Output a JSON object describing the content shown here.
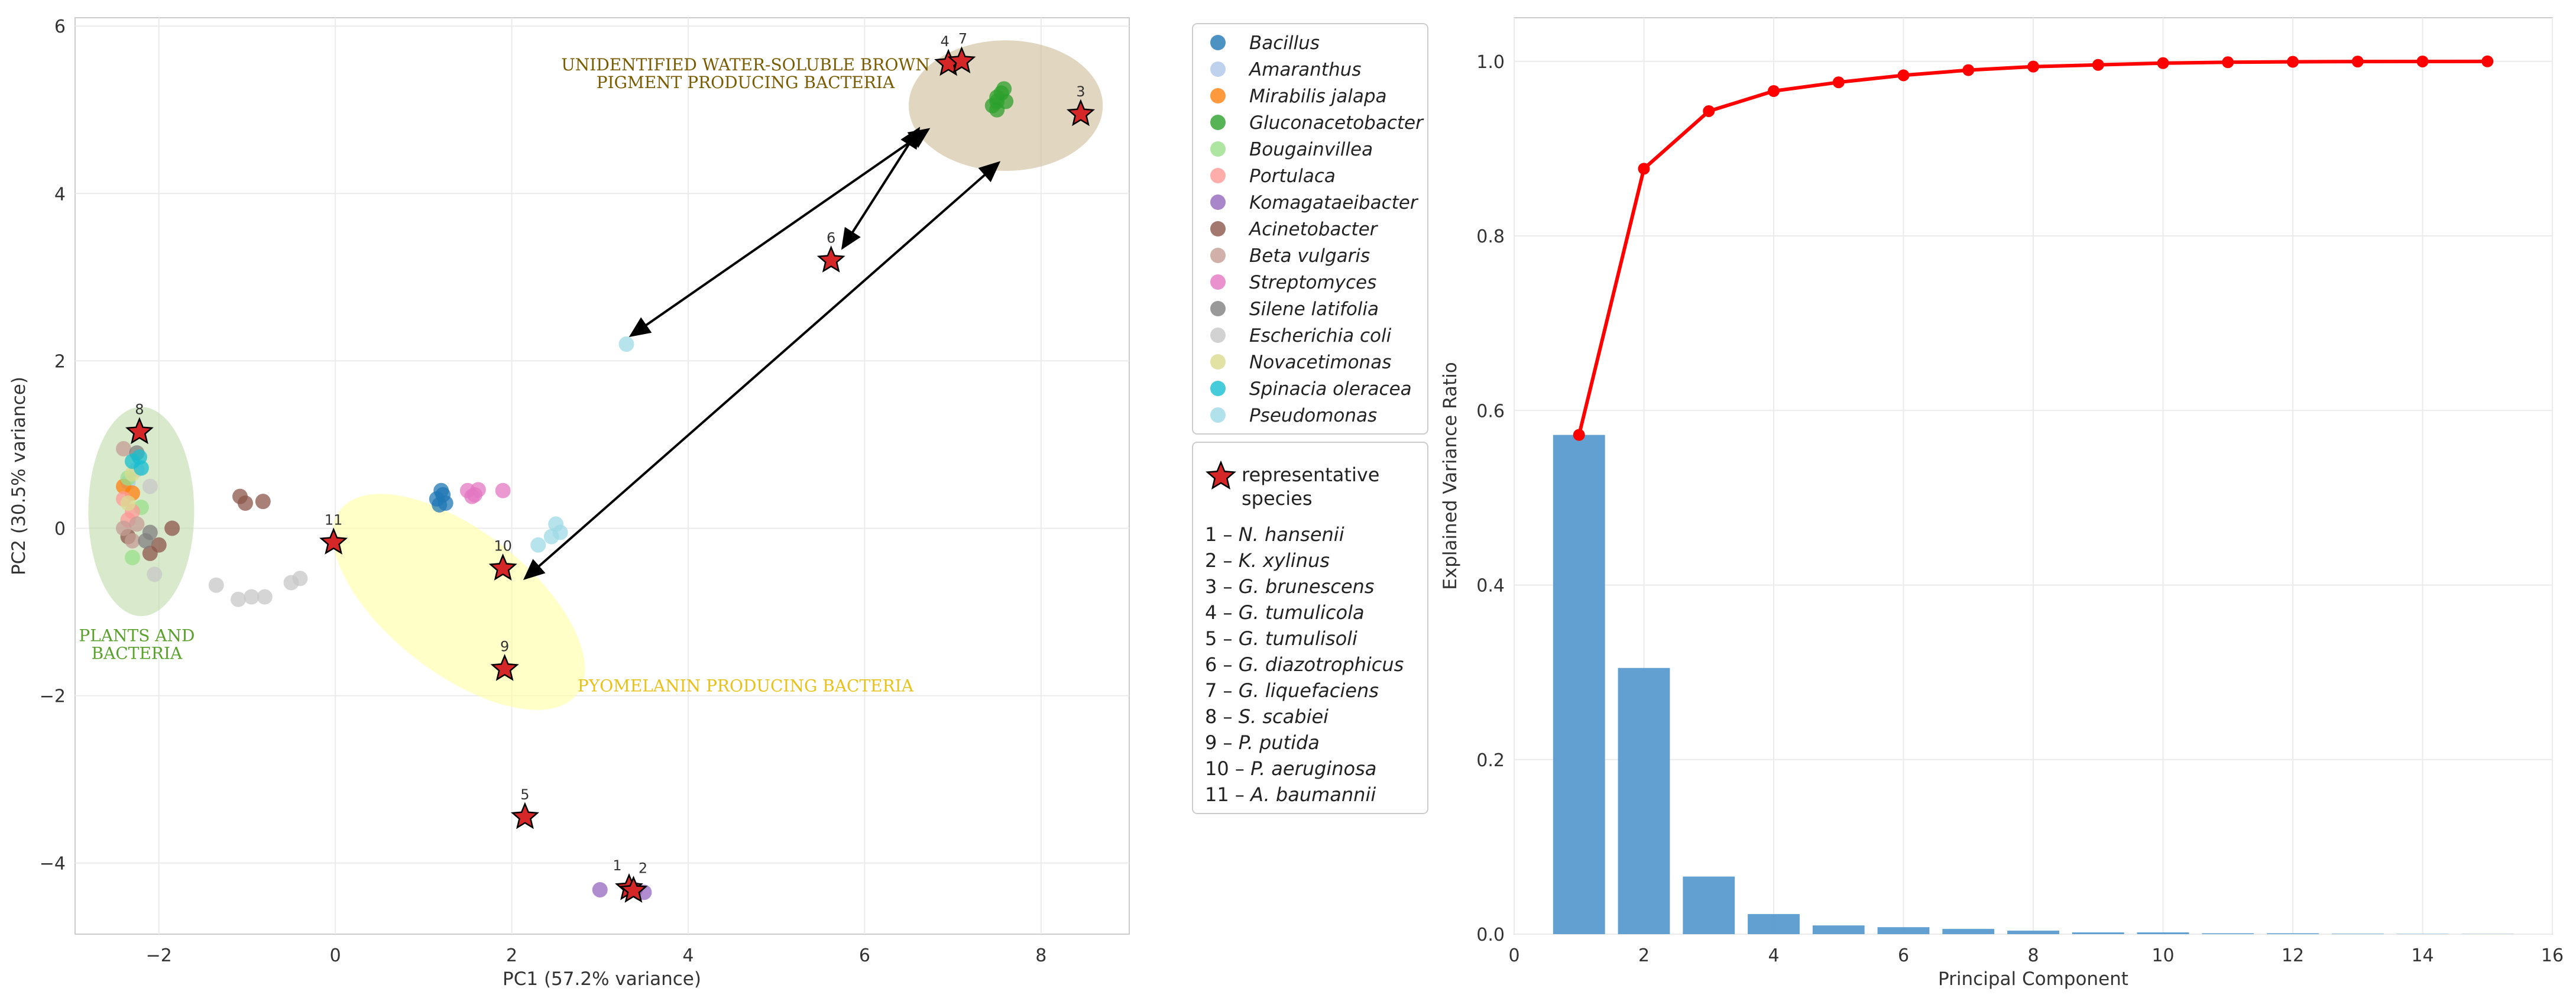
{
  "chart_data": [
    {
      "type": "scatter",
      "title": "",
      "xlabel": "PC1 (57.2% variance)",
      "ylabel": "PC2 (30.5% variance)",
      "xlim": [
        -2.95,
        9.0
      ],
      "ylim": [
        -4.85,
        6.1
      ],
      "xticks": [
        -2,
        0,
        2,
        4,
        6,
        8
      ],
      "yticks": [
        -4,
        -2,
        0,
        2,
        4,
        6
      ],
      "xtick_labels": [
        "−2",
        "0",
        "2",
        "4",
        "6",
        "8"
      ],
      "ytick_labels": [
        "−4",
        "−2",
        "0",
        "2",
        "4",
        "6"
      ],
      "series": [
        {
          "name": "Bacillus",
          "color": "#1f77b4",
          "points": [
            [
              1.15,
              0.35
            ],
            [
              1.2,
              0.45
            ],
            [
              1.25,
              0.3
            ],
            [
              1.18,
              0.28
            ],
            [
              1.22,
              0.4
            ]
          ]
        },
        {
          "name": "Amaranthus",
          "color": "#aec7e8",
          "points": [
            [
              -2.35,
              0.55
            ],
            [
              -2.25,
              0.7
            ]
          ]
        },
        {
          "name": "Mirabilis jalapa",
          "color": "#ff7f0e",
          "points": [
            [
              -2.4,
              0.5
            ],
            [
              -2.3,
              0.42
            ]
          ]
        },
        {
          "name": "Gluconacetobacter",
          "color": "#2ca02c",
          "points": [
            [
              7.55,
              5.2
            ],
            [
              7.6,
              5.1
            ],
            [
              7.5,
              5.15
            ],
            [
              7.45,
              5.05
            ],
            [
              7.58,
              5.25
            ],
            [
              7.5,
              5.0
            ],
            [
              7.5,
              5.1
            ]
          ]
        },
        {
          "name": "Bougainvillea",
          "color": "#98df8a",
          "points": [
            [
              -2.3,
              -0.35
            ],
            [
              -2.35,
              0.6
            ],
            [
              -2.2,
              0.25
            ]
          ]
        },
        {
          "name": "Portulaca",
          "color": "#ff9896",
          "points": [
            [
              -2.4,
              0.35
            ],
            [
              -2.3,
              0.2
            ],
            [
              -2.35,
              0.1
            ]
          ]
        },
        {
          "name": "Komagataeibacter",
          "color": "#9467bd",
          "points": [
            [
              3.0,
              -4.32
            ],
            [
              3.5,
              -4.35
            ],
            [
              3.4,
              -4.32
            ]
          ]
        },
        {
          "name": "Acinetobacter",
          "color": "#8c564b",
          "points": [
            [
              -1.08,
              0.38
            ],
            [
              -1.02,
              0.3
            ],
            [
              -0.82,
              0.32
            ],
            [
              -2.35,
              -0.1
            ],
            [
              -2.1,
              -0.3
            ],
            [
              -2.0,
              -0.2
            ],
            [
              -1.85,
              0.0
            ]
          ]
        },
        {
          "name": "Beta vulgaris",
          "color": "#c49c94",
          "points": [
            [
              -2.4,
              0.0
            ],
            [
              -2.3,
              -0.15
            ],
            [
              -2.25,
              0.05
            ],
            [
              -2.4,
              0.95
            ]
          ]
        },
        {
          "name": "Streptomyces",
          "color": "#e377c2",
          "points": [
            [
              1.5,
              0.45
            ],
            [
              1.58,
              0.4
            ],
            [
              1.62,
              0.46
            ],
            [
              1.55,
              0.38
            ],
            [
              1.9,
              0.45
            ]
          ]
        },
        {
          "name": "Silene latifolia",
          "color": "#7f7f7f",
          "points": [
            [
              -2.15,
              -0.15
            ],
            [
              -2.1,
              -0.05
            ],
            [
              -2.25,
              0.9
            ]
          ]
        },
        {
          "name": "Escherichia coli",
          "color": "#c7c7c7",
          "points": [
            [
              -1.35,
              -0.68
            ],
            [
              -1.1,
              -0.85
            ],
            [
              -0.95,
              -0.82
            ],
            [
              -0.8,
              -0.82
            ],
            [
              -0.5,
              -0.65
            ],
            [
              -0.4,
              -0.6
            ],
            [
              -2.05,
              -0.55
            ],
            [
              -2.1,
              0.5
            ]
          ]
        },
        {
          "name": "Novacetimonas",
          "color": "#dbdb8d",
          "points": [
            [
              -2.35,
              0.3
            ],
            [
              -2.3,
              0.65
            ]
          ]
        },
        {
          "name": "Spinacia oleracea",
          "color": "#17becf",
          "points": [
            [
              -2.3,
              0.8
            ],
            [
              -2.22,
              0.85
            ],
            [
              -2.2,
              0.72
            ]
          ]
        },
        {
          "name": "Pseudomonas",
          "color": "#9edae5",
          "points": [
            [
              3.3,
              2.2
            ],
            [
              2.3,
              -0.2
            ],
            [
              2.45,
              -0.1
            ],
            [
              2.5,
              0.05
            ],
            [
              2.55,
              -0.05
            ]
          ]
        }
      ],
      "representative_species": [
        {
          "id": "1",
          "name": "N. hansenii",
          "x": 3.33,
          "y": -4.3
        },
        {
          "id": "2",
          "name": "K. xylinus",
          "x": 3.38,
          "y": -4.33
        },
        {
          "id": "3",
          "name": "G. brunescens",
          "x": 8.45,
          "y": 4.95
        },
        {
          "id": "4",
          "name": "G. tumulicola",
          "x": 6.95,
          "y": 5.55
        },
        {
          "id": "5",
          "name": "G. tumulisoli",
          "x": 2.15,
          "y": -3.45
        },
        {
          "id": "6",
          "name": "G. diazotrophicus",
          "x": 5.62,
          "y": 3.2
        },
        {
          "id": "7",
          "name": "G. liquefaciens",
          "x": 7.1,
          "y": 5.58
        },
        {
          "id": "8",
          "name": "S. scabiei",
          "x": -2.22,
          "y": 1.15
        },
        {
          "id": "9",
          "name": "P. putida",
          "x": 1.92,
          "y": -1.68
        },
        {
          "id": "10",
          "name": "P. aeruginosa",
          "x": 1.9,
          "y": -0.48
        },
        {
          "id": "11",
          "name": "A. baumannii",
          "x": -0.02,
          "y": -0.17
        }
      ],
      "regions": [
        {
          "label_lines": [
            "UNIDENTIFIED WATER-SOLUBLE BROWN",
            "PIGMENT PRODUCING BACTERIA"
          ],
          "color": "#7a5c00",
          "fill": "#c8b48a",
          "cx": 7.6,
          "cy": 5.05,
          "rx": 1.1,
          "ry": 0.78,
          "angle": 0,
          "label_x": 4.65,
          "label_y": 5.47
        },
        {
          "label_lines": [
            "PLANTS AND",
            "BACTERIA"
          ],
          "color": "#5aa02c",
          "fill": "#b9d7a3",
          "cx": -2.2,
          "cy": 0.2,
          "rx": 0.6,
          "ry": 1.25,
          "angle": 0,
          "label_x": -2.25,
          "label_y": -1.35
        },
        {
          "label_lines": [
            "PYOMELANIN PRODUCING BACTERIA"
          ],
          "color": "#e8c21a",
          "fill": "#ffff99",
          "cx": 1.4,
          "cy": -0.88,
          "rx": 1.7,
          "ry": 0.85,
          "angle": 38,
          "label_x": 4.65,
          "label_y": -1.95
        }
      ],
      "arrows": [
        {
          "from": [
            6.7,
            4.75
          ],
          "to": [
            3.35,
            2.3
          ]
        },
        {
          "from": [
            6.6,
            4.75
          ],
          "to": [
            5.75,
            3.35
          ]
        },
        {
          "from": [
            7.5,
            4.35
          ],
          "to": [
            2.15,
            -0.6
          ]
        }
      ],
      "legend": {
        "marker_label": "representative species",
        "list_title": ""
      }
    },
    {
      "type": "bar+line",
      "title": "",
      "xlabel": "Principal Component",
      "ylabel": "Explained Variance Ratio",
      "xlim": [
        0,
        16
      ],
      "ylim": [
        0,
        1.05
      ],
      "xticks": [
        0,
        2,
        4,
        6,
        8,
        10,
        12,
        14,
        16
      ],
      "yticks": [
        0.0,
        0.2,
        0.4,
        0.6,
        0.8,
        1.0
      ],
      "xtick_labels": [
        "0",
        "2",
        "4",
        "6",
        "8",
        "10",
        "12",
        "14",
        "16"
      ],
      "ytick_labels": [
        "0.0",
        "0.2",
        "0.4",
        "0.6",
        "0.8",
        "1.0"
      ],
      "x": [
        1,
        2,
        3,
        4,
        5,
        6,
        7,
        8,
        9,
        10,
        11,
        12,
        13,
        14,
        15
      ],
      "bar_values": [
        0.572,
        0.305,
        0.066,
        0.023,
        0.01,
        0.008,
        0.006,
        0.004,
        0.002,
        0.002,
        0.001,
        0.001,
        0.0005,
        0.0003,
        0.0002
      ],
      "cumulative": [
        0.572,
        0.877,
        0.943,
        0.966,
        0.976,
        0.984,
        0.99,
        0.994,
        0.996,
        0.998,
        0.999,
        0.9995,
        0.9998,
        0.9999,
        1.0
      ],
      "bar_color": "#5b9bd0",
      "line_color": "#ff0000"
    }
  ]
}
